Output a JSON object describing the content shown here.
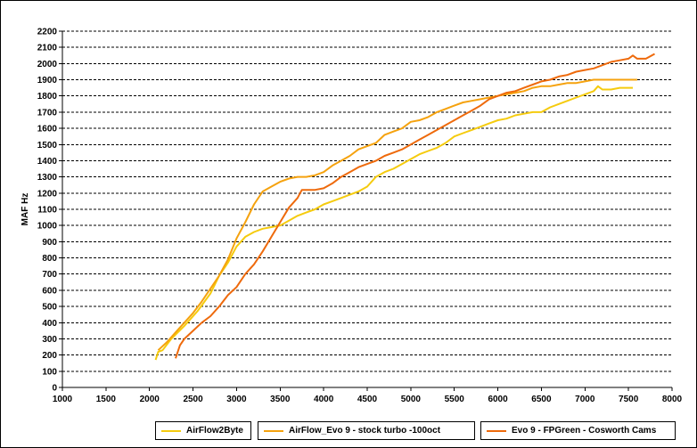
{
  "chart_data": {
    "type": "line",
    "xlabel": "",
    "ylabel": "MAF Hz",
    "xlim": [
      1000,
      8000
    ],
    "ylim": [
      0,
      2200
    ],
    "x_ticks": [
      1000,
      1500,
      2000,
      2500,
      3000,
      3500,
      4000,
      4500,
      5000,
      5500,
      6000,
      6500,
      7000,
      7500,
      8000
    ],
    "y_ticks": [
      0,
      100,
      200,
      300,
      400,
      500,
      600,
      700,
      800,
      900,
      1000,
      1100,
      1200,
      1300,
      1400,
      1500,
      1600,
      1700,
      1800,
      1900,
      2000,
      2100,
      2200
    ],
    "grid": "horizontal dashed",
    "legend_position": "bottom",
    "series": [
      {
        "name": "AirFlow2Byte",
        "color": "#F5CB0E",
        "x": [
          2070,
          2100,
          2150,
          2250,
          2400,
          2550,
          2700,
          2800,
          2900,
          3000,
          3100,
          3200,
          3300,
          3400,
          3500,
          3600,
          3700,
          3800,
          3900,
          4000,
          4100,
          4200,
          4300,
          4400,
          4500,
          4600,
          4700,
          4800,
          4900,
          5000,
          5100,
          5200,
          5300,
          5400,
          5500,
          5600,
          5700,
          5800,
          5900,
          6000,
          6100,
          6200,
          6300,
          6400,
          6500,
          6600,
          6700,
          6800,
          6900,
          7000,
          7100,
          7150,
          7200,
          7300,
          7400,
          7500,
          7550
        ],
        "y": [
          170,
          220,
          230,
          300,
          380,
          470,
          580,
          690,
          770,
          870,
          930,
          960,
          980,
          990,
          1000,
          1030,
          1060,
          1080,
          1100,
          1130,
          1150,
          1170,
          1190,
          1210,
          1240,
          1300,
          1330,
          1350,
          1380,
          1410,
          1440,
          1460,
          1480,
          1510,
          1550,
          1570,
          1590,
          1610,
          1630,
          1650,
          1660,
          1680,
          1690,
          1700,
          1700,
          1730,
          1750,
          1770,
          1790,
          1810,
          1830,
          1860,
          1840,
          1840,
          1850,
          1850,
          1850
        ]
      },
      {
        "name": "AirFlow_Evo 9 - stock turbo -100oct",
        "color": "#F5A20E",
        "x": [
          2100,
          2200,
          2300,
          2400,
          2500,
          2600,
          2700,
          2800,
          2900,
          3000,
          3100,
          3200,
          3300,
          3400,
          3500,
          3600,
          3700,
          3800,
          3900,
          4000,
          4100,
          4200,
          4300,
          4400,
          4500,
          4600,
          4700,
          4800,
          4900,
          5000,
          5100,
          5200,
          5300,
          5400,
          5500,
          5600,
          5700,
          5800,
          5900,
          6000,
          6100,
          6200,
          6300,
          6400,
          6500,
          6600,
          6700,
          6800,
          6900,
          7000,
          7100,
          7200,
          7300,
          7400,
          7500,
          7600
        ],
        "y": [
          230,
          280,
          340,
          400,
          460,
          530,
          610,
          690,
          790,
          920,
          1020,
          1130,
          1210,
          1240,
          1270,
          1290,
          1300,
          1300,
          1310,
          1330,
          1370,
          1400,
          1430,
          1470,
          1490,
          1510,
          1560,
          1580,
          1600,
          1640,
          1650,
          1670,
          1700,
          1720,
          1740,
          1760,
          1770,
          1780,
          1790,
          1800,
          1810,
          1820,
          1830,
          1850,
          1860,
          1860,
          1870,
          1880,
          1880,
          1890,
          1900,
          1900,
          1900,
          1900,
          1900,
          1900
        ]
      },
      {
        "name": "Evo 9 - FPGreen - Cosworth Cams",
        "color": "#EE6A0C",
        "x": [
          2300,
          2350,
          2400,
          2500,
          2600,
          2700,
          2800,
          2900,
          3000,
          3100,
          3200,
          3300,
          3400,
          3500,
          3600,
          3700,
          3750,
          3800,
          3900,
          4000,
          4100,
          4200,
          4300,
          4400,
          4500,
          4600,
          4700,
          4800,
          4900,
          5000,
          5100,
          5200,
          5300,
          5400,
          5500,
          5600,
          5700,
          5800,
          5900,
          6000,
          6100,
          6200,
          6300,
          6400,
          6500,
          6600,
          6700,
          6800,
          6900,
          7000,
          7100,
          7200,
          7300,
          7400,
          7500,
          7550,
          7600,
          7700,
          7800
        ],
        "y": [
          180,
          260,
          300,
          350,
          400,
          440,
          500,
          570,
          620,
          700,
          760,
          840,
          930,
          1020,
          1110,
          1170,
          1220,
          1220,
          1220,
          1230,
          1260,
          1300,
          1330,
          1360,
          1380,
          1400,
          1430,
          1450,
          1470,
          1500,
          1530,
          1560,
          1590,
          1620,
          1650,
          1680,
          1710,
          1740,
          1780,
          1800,
          1820,
          1830,
          1850,
          1870,
          1890,
          1900,
          1920,
          1930,
          1950,
          1960,
          1970,
          1990,
          2010,
          2020,
          2030,
          2050,
          2030,
          2030,
          2060
        ]
      }
    ]
  }
}
